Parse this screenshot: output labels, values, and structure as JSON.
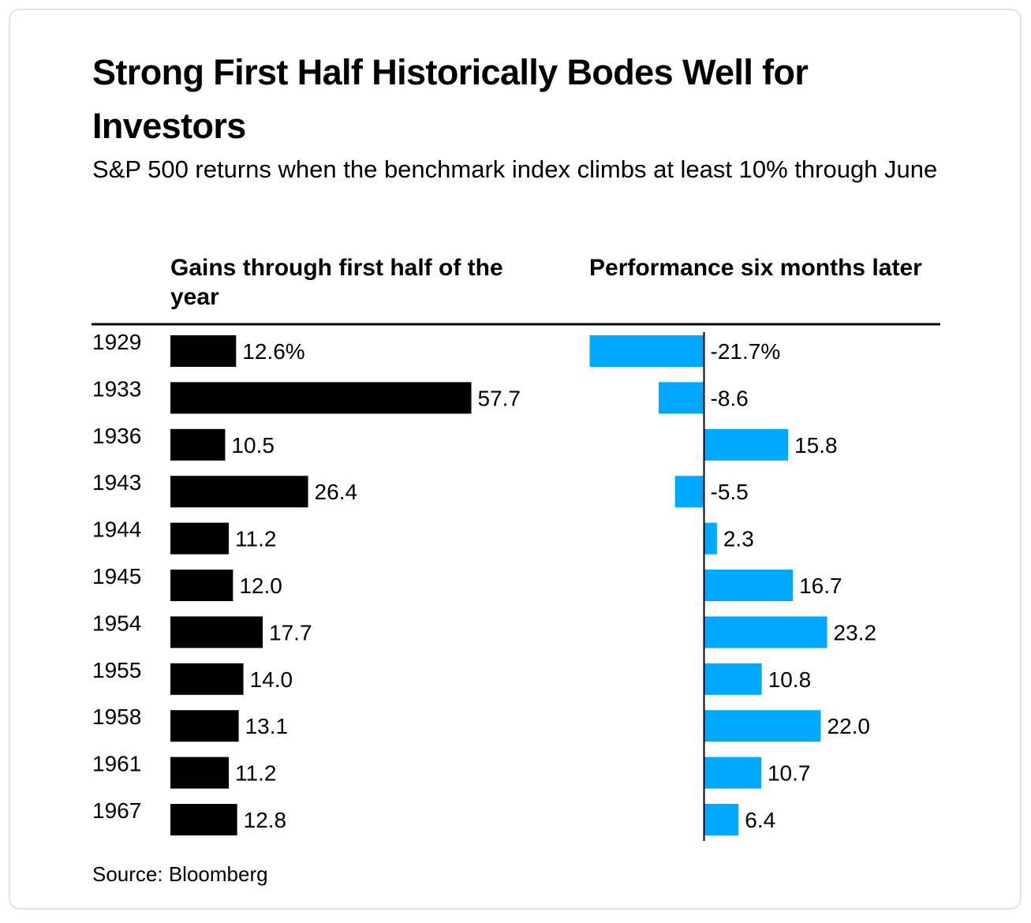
{
  "chart_data": {
    "type": "bar",
    "title": "Strong First Half Historically Bodes Well for Investors",
    "subtitle": "S&P 500 returns when the benchmark index climbs at least 10% through June",
    "categories": [
      "1929",
      "1933",
      "1936",
      "1943",
      "1944",
      "1945",
      "1954",
      "1955",
      "1958",
      "1961",
      "1967"
    ],
    "series": [
      {
        "name": "Gains through first half of the year",
        "color": "#000000",
        "values": [
          12.6,
          57.7,
          10.5,
          26.4,
          11.2,
          12.0,
          17.7,
          14.0,
          13.1,
          11.2,
          12.8
        ],
        "labels": [
          "12.6%",
          "57.7",
          "10.5",
          "26.4",
          "11.2",
          "12.0",
          "17.7",
          "14.0",
          "13.1",
          "11.2",
          "12.8"
        ]
      },
      {
        "name": "Performance six months later",
        "color": "#00a9ff",
        "values": [
          -21.7,
          -8.6,
          15.8,
          -5.5,
          2.3,
          16.7,
          23.2,
          10.8,
          22.0,
          10.7,
          6.4
        ],
        "labels": [
          "-21.7%",
          "-8.6",
          "15.8",
          "-5.5",
          "2.3",
          "16.7",
          "23.2",
          "10.8",
          "22.0",
          "10.7",
          "6.4"
        ]
      }
    ],
    "source": "Source: Bloomberg"
  }
}
